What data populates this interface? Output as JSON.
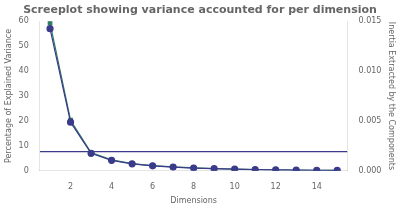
{
  "chart_data": {
    "type": "line",
    "title": "Screeplot showing variance accounted for per dimension",
    "x_label": "Dimensions",
    "y_label": "Percentage of Explained Variance",
    "y2_label": "Inertia Extracted by the Components",
    "x": [
      1,
      2,
      3,
      4,
      5,
      6,
      7,
      8,
      9,
      10,
      11,
      12,
      13,
      14,
      15
    ],
    "series": [
      {
        "color": "#3B3B8C",
        "marker": "circle",
        "axis": "y",
        "values": [
          57.0,
          19.5,
          7.0,
          4.2,
          2.8,
          2.0,
          1.5,
          1.1,
          0.85,
          0.65,
          0.5,
          0.4,
          0.3,
          0.22,
          0.18
        ]
      },
      {
        "color": "#2E7D5E",
        "marker": "square",
        "axis": "y2",
        "values": [
          0.01482,
          0.005072,
          0.00182,
          0.001092,
          0.000728,
          0.00052,
          0.00039,
          0.000286,
          0.000221,
          0.000169,
          0.00013,
          0.000104,
          7.8e-05,
          5.72e-05,
          4.68e-05
        ]
      }
    ],
    "reference_line": {
      "y": 7.69,
      "color": "#3B3B8C"
    },
    "xlim": [
      0.5,
      15.5
    ],
    "xticks": [
      2,
      4,
      6,
      8,
      10,
      12,
      14
    ],
    "ylim": [
      0,
      60
    ],
    "yticks": [
      0,
      10,
      20,
      30,
      40,
      50,
      60
    ],
    "y2lim": [
      0,
      0.015
    ],
    "y2ticks": [
      {
        "value": 0,
        "label": "0.000"
      },
      0.005,
      {
        "value": 0.01,
        "label": "0.010"
      },
      0.015
    ],
    "grid": false
  }
}
